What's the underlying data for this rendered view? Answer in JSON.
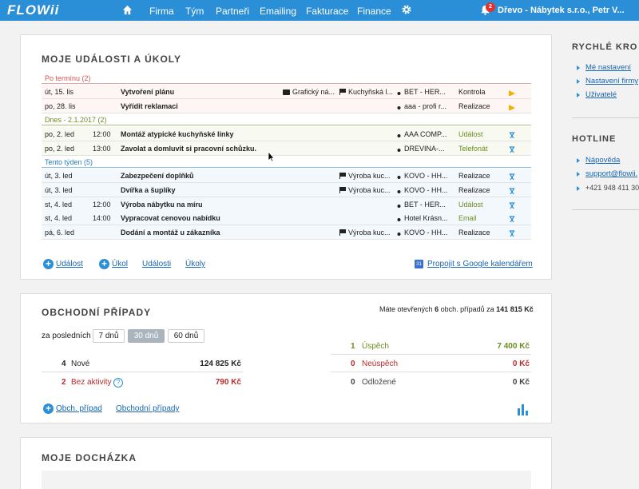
{
  "nav": {
    "logo": "FLOWii",
    "home_icon": "home-icon",
    "menu": [
      "Firma",
      "Tým",
      "Partneři",
      "Emailing",
      "Fakturace",
      "Finance"
    ],
    "settings_icon": "gear-icon",
    "notif_icon": "bell-icon",
    "notif_count": "2",
    "user": "Dřevo - Nábytek s.r.o., Petr V..."
  },
  "events": {
    "title": "MOJE UDÁLOSTI A ÚKOLY",
    "sections": [
      {
        "label": "Po termínu (2)",
        "color": "#d9534f"
      },
      {
        "label": "Dnes - 2.1.2017 (2)",
        "color": "#6a8d1f"
      },
      {
        "label": "Tento týden (5)",
        "color": "#2a7fc0"
      }
    ],
    "rows": [
      {
        "date": "út, 15. lis",
        "time": "",
        "name": "Vytvoření plánu",
        "project": "Grafický ná...",
        "tag": "Kuchyňská l...",
        "person": "BET - HER...",
        "type": "Kontrola",
        "status_icon": "arrow-icon"
      },
      {
        "date": "po, 28. lis",
        "time": "",
        "name": "Vyřídit reklamaci",
        "project": "",
        "tag": "",
        "person": "aaa - profi r...",
        "type": "Realizace",
        "status_icon": "arrow-icon"
      },
      {
        "date": "po, 2. led",
        "time": "12:00",
        "name": "Montáž atypické kuchyňské linky",
        "project": "",
        "tag": "",
        "person": "AAA COMP...",
        "type": "Událost",
        "status_icon": "hourglass-icon"
      },
      {
        "date": "po, 2. led",
        "time": "13:00",
        "name": "Zavolat a domluvit si pracovní schůzku.",
        "project": "",
        "tag": "",
        "person": "DREVINA-...",
        "type": "Telefonát",
        "status_icon": "hourglass-icon"
      },
      {
        "date": "út, 3. led",
        "time": "",
        "name": "Zabezpečení doplňků",
        "project": "",
        "tag": "Výroba kuc...",
        "person": "KOVO - HH...",
        "type": "Realizace",
        "status_icon": "hourglass-icon"
      },
      {
        "date": "út, 3. led",
        "time": "",
        "name": "Dvířka a šuplíky",
        "project": "",
        "tag": "Výroba kuc...",
        "person": "KOVO - HH...",
        "type": "Realizace",
        "status_icon": "hourglass-icon"
      },
      {
        "date": "st, 4. led",
        "time": "12:00",
        "name": "Výroba nábytku na míru",
        "project": "",
        "tag": "",
        "person": "BET - HER...",
        "type": "Událost",
        "status_icon": "hourglass-icon"
      },
      {
        "date": "st, 4. led",
        "time": "14:00",
        "name": "Vypracovat cenovou nabídku",
        "project": "",
        "tag": "",
        "person": "Hotel Krásn...",
        "type": "Email",
        "status_icon": "hourglass-icon"
      },
      {
        "date": "pá, 6. led",
        "time": "",
        "name": "Dodání a montáž u zákazníka",
        "project": "",
        "tag": "Výroba kuc...",
        "person": "KOVO - HH...",
        "type": "Realizace",
        "status_icon": "hourglass-icon"
      }
    ],
    "footer": {
      "add_event": "Událost",
      "add_task": "Úkol",
      "events_link": "Události",
      "tasks_link": "Úkoly",
      "calendar_day": "31",
      "google_link": "Propojit s Google kalendářem"
    }
  },
  "deals": {
    "title": "OBCHODNÍ PŘÍPADY",
    "summary_prefix": "Máte otevřených",
    "summary_count": "6",
    "summary_middle": "obch. případů za",
    "summary_total": "141 815 Kč",
    "period_label": "za posledních",
    "periods": [
      "7 dnů",
      "30 dnů",
      "60 dnů"
    ],
    "active_period": "30 dnů",
    "left": [
      {
        "count": "4",
        "label": "Nové",
        "value": "124 825 Kč"
      },
      {
        "count": "2",
        "label": "Bez aktivity",
        "value": "790 Kč"
      }
    ],
    "right": [
      {
        "count": "1",
        "label": "Úspěch",
        "value": "7 400 Kč"
      },
      {
        "count": "0",
        "label": "Neúspěch",
        "value": "0 Kč"
      },
      {
        "count": "0",
        "label": "Odložené",
        "value": "0 Kč"
      }
    ],
    "add_link": "Obch. případ",
    "list_link": "Obchodní případy",
    "chart_icon": "bar-chart-icon"
  },
  "attendance": {
    "title": "MOJE DOCHÁZKA"
  },
  "sidebar": {
    "quick_title": "RYCHLÉ KRO",
    "quick_links": [
      "Mé nastavení",
      "Nastavení firmy",
      "Uživatelé"
    ],
    "hotline_title": "HOTLINE",
    "help": "Nápověda",
    "email": "support@flowii.",
    "phone": "+421 948 411 30"
  },
  "colors": {
    "accent": "#2a8fd6",
    "overdue": "#d9534f",
    "today": "#6a8d1f",
    "week": "#2a7fc0"
  }
}
